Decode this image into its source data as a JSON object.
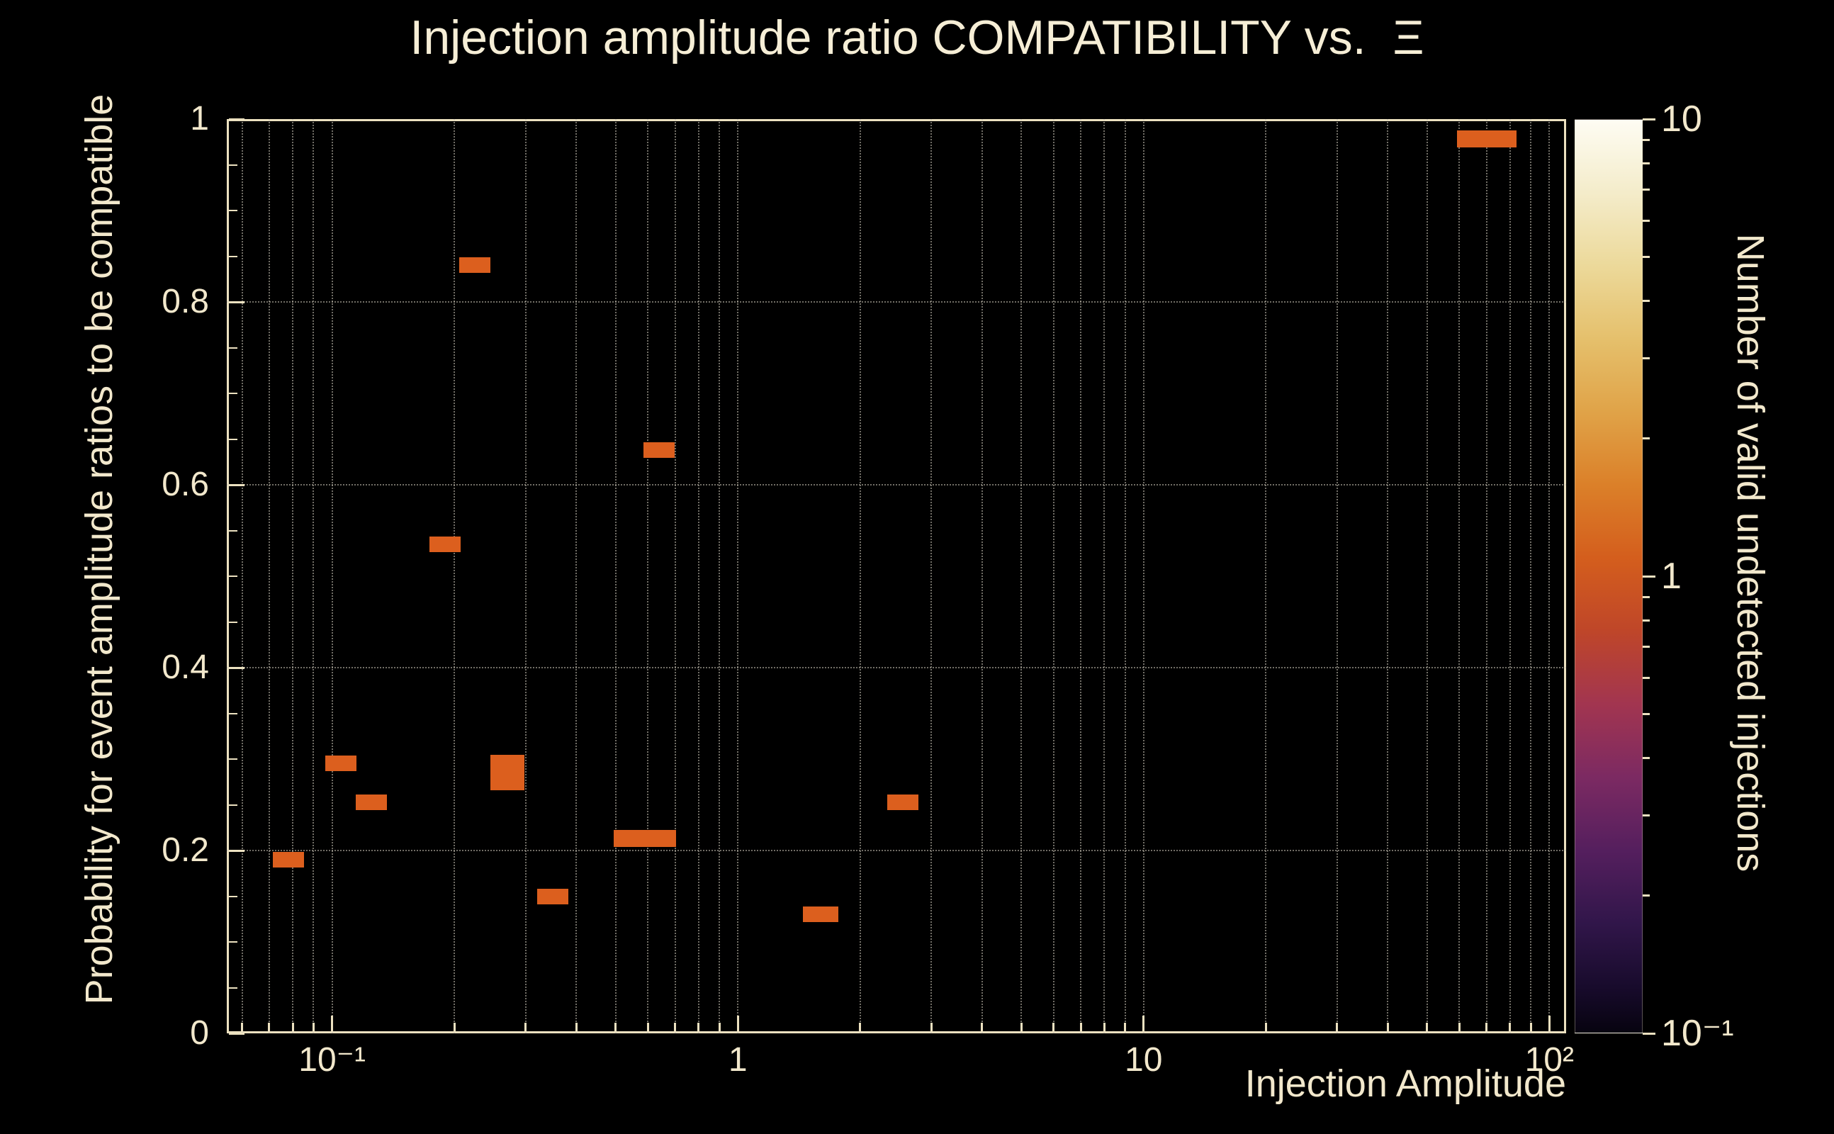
{
  "title": "Injection amplitude ratio COMPATIBILITY vs.  Ξ",
  "colors": {
    "background": "#000000",
    "text": "#f2e8cc",
    "frame": "#ece1c0",
    "grid": "#c8c3b4",
    "marker": "#dc5f1e"
  },
  "chart_data": {
    "type": "scatter",
    "title": "Injection amplitude ratio COMPATIBILITY vs.  Ξ",
    "xlabel": "Injection Amplitude",
    "ylabel": "Probability for event amplitude ratios to be compatible",
    "x_scale": "log",
    "y_scale": "linear",
    "xlim": [
      0.055,
      110
    ],
    "ylim": [
      0,
      1
    ],
    "grid": true,
    "marker_color": "#dc5f1e",
    "x_ticks": [
      {
        "value": 0.1,
        "label": "10⁻¹"
      },
      {
        "value": 1,
        "label": "1"
      },
      {
        "value": 10,
        "label": "10"
      },
      {
        "value": 100,
        "label": "10²"
      }
    ],
    "y_ticks": [
      {
        "value": 0,
        "label": "0"
      },
      {
        "value": 0.2,
        "label": "0.2"
      },
      {
        "value": 0.4,
        "label": "0.4"
      },
      {
        "value": 0.6,
        "label": "0.6"
      },
      {
        "value": 0.8,
        "label": "0.8"
      },
      {
        "value": 1,
        "label": "1"
      }
    ],
    "points": [
      {
        "x": 0.078,
        "y": 0.19,
        "n": 1,
        "w": 44,
        "h": 22
      },
      {
        "x": 0.105,
        "y": 0.295,
        "n": 1,
        "w": 44,
        "h": 22
      },
      {
        "x": 0.125,
        "y": 0.253,
        "n": 1,
        "w": 44,
        "h": 22
      },
      {
        "x": 0.19,
        "y": 0.535,
        "n": 1,
        "w": 44,
        "h": 22
      },
      {
        "x": 0.225,
        "y": 0.84,
        "n": 1,
        "w": 44,
        "h": 22
      },
      {
        "x": 0.27,
        "y": 0.285,
        "n": 1,
        "w": 48,
        "h": 50
      },
      {
        "x": 0.35,
        "y": 0.15,
        "n": 1,
        "w": 44,
        "h": 22
      },
      {
        "x": 0.59,
        "y": 0.213,
        "n": 1,
        "w": 88,
        "h": 24
      },
      {
        "x": 0.64,
        "y": 0.638,
        "n": 1,
        "w": 44,
        "h": 22
      },
      {
        "x": 1.6,
        "y": 0.13,
        "n": 1,
        "w": 50,
        "h": 22
      },
      {
        "x": 2.55,
        "y": 0.253,
        "n": 1,
        "w": 44,
        "h": 22
      },
      {
        "x": 70,
        "y": 0.978,
        "n": 1,
        "w": 84,
        "h": 24
      }
    ],
    "colorbar": {
      "label": "Number of valid undetected injections",
      "scale": "log",
      "min": 0.1,
      "max": 10,
      "ticks": [
        {
          "value": 10,
          "label": "10"
        },
        {
          "value": 1,
          "label": "1"
        },
        {
          "value": 0.1,
          "label": "10⁻¹"
        }
      ],
      "gradient": [
        [
          "0%",
          "#fefcf3"
        ],
        [
          "8%",
          "#f4ecca"
        ],
        [
          "16%",
          "#ecd99a"
        ],
        [
          "24%",
          "#e5c06c"
        ],
        [
          "32%",
          "#e0a348"
        ],
        [
          "40%",
          "#db8029"
        ],
        [
          "48%",
          "#d45e1d"
        ],
        [
          "56%",
          "#bf4629"
        ],
        [
          "64%",
          "#a23550"
        ],
        [
          "72%",
          "#7c2a62"
        ],
        [
          "80%",
          "#551f5e"
        ],
        [
          "88%",
          "#31164a"
        ],
        [
          "95%",
          "#180b2c"
        ],
        [
          "100%",
          "#070310"
        ]
      ]
    }
  }
}
